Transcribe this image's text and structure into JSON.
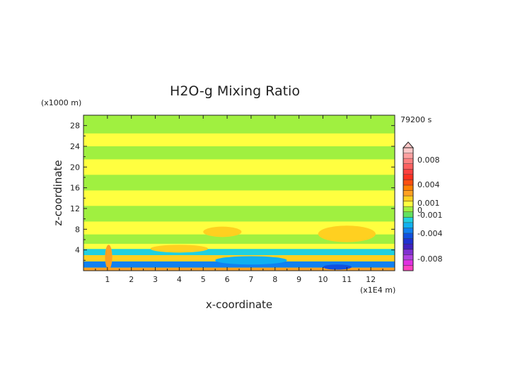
{
  "chart_data": {
    "type": "heatmap",
    "title": "H2O-g Mixing Ratio",
    "xlabel": "x-coordinate",
    "ylabel": "z-coordinate",
    "x_unit": "(x1E4 m)",
    "y_unit": "(x1000 m)",
    "time_label": "79200 s",
    "xlim": [
      0,
      13
    ],
    "ylim": [
      0,
      30
    ],
    "x_ticks": [
      "1",
      "2",
      "3",
      "4",
      "5",
      "6",
      "7",
      "8",
      "9",
      "10",
      "11",
      "12"
    ],
    "y_ticks": [
      "4",
      "8",
      "12",
      "16",
      "20",
      "24",
      "28"
    ],
    "colorbar": {
      "labels": [
        "0.008",
        "0.004",
        "0.001",
        "0",
        "-0.001",
        "-0.004",
        "-0.008"
      ],
      "levels": [
        -0.01,
        -0.009,
        -0.008,
        -0.007,
        -0.006,
        -0.005,
        -0.004,
        -0.003,
        -0.002,
        -0.001,
        -0.0005,
        0,
        0.0005,
        0.001,
        0.002,
        0.003,
        0.004,
        0.005,
        0.006,
        0.007,
        0.008,
        0.009,
        0.01
      ],
      "colors": [
        "#ff40c0",
        "#e030e0",
        "#b040e0",
        "#8030d0",
        "#4020c0",
        "#2030d0",
        "#1050e0",
        "#1080f0",
        "#10b0f0",
        "#20d0e0",
        "#60e060",
        "#a0f040",
        "#ffff40",
        "#ffd020",
        "#ffa020",
        "#ff8000",
        "#ff5010",
        "#ff3020",
        "#ff4040",
        "#ff6060",
        "#ff8080",
        "#ffa0a0",
        "#ffc8c8"
      ]
    },
    "bands": [
      {
        "z0": 0,
        "z1": 0.6,
        "value": 0.0025
      },
      {
        "z0": 0.6,
        "z1": 1.8,
        "value": -0.003
      },
      {
        "z0": 1.8,
        "z1": 3.0,
        "value": 0.0015
      },
      {
        "z0": 3.0,
        "z1": 4.2,
        "value": -0.0008
      },
      {
        "z0": 4.2,
        "z1": 5.2,
        "value": 0.0006
      },
      {
        "z0": 5.2,
        "z1": 7.0,
        "value": 0.0003
      },
      {
        "z0": 7.0,
        "z1": 9.5,
        "value": 0.0007
      },
      {
        "z0": 9.5,
        "z1": 12.5,
        "value": 0.0003
      },
      {
        "z0": 12.5,
        "z1": 15.5,
        "value": 0.0007
      },
      {
        "z0": 15.5,
        "z1": 18.5,
        "value": 0.0003
      },
      {
        "z0": 18.5,
        "z1": 21.5,
        "value": 0.0007
      },
      {
        "z0": 21.5,
        "z1": 24.0,
        "value": 0.0003
      },
      {
        "z0": 24.0,
        "z1": 26.5,
        "value": 0.0007
      },
      {
        "z0": 26.5,
        "z1": 30.0,
        "value": 0.0003
      }
    ],
    "features": [
      {
        "x0": 5.0,
        "x1": 6.6,
        "z0": 6.5,
        "z1": 8.5,
        "value": 0.0015
      },
      {
        "x0": 9.8,
        "x1": 12.2,
        "z0": 5.5,
        "z1": 8.7,
        "value": 0.0015
      },
      {
        "x0": 2.8,
        "x1": 5.2,
        "z0": 3.5,
        "z1": 5.0,
        "value": 0.0015
      },
      {
        "x0": 0.9,
        "x1": 1.2,
        "z0": 0.3,
        "z1": 5.0,
        "value": 0.002
      },
      {
        "x0": 5.5,
        "x1": 8.5,
        "z0": 1.2,
        "z1": 2.8,
        "value": -0.002
      },
      {
        "x0": 10.0,
        "x1": 11.2,
        "z0": 0.2,
        "z1": 1.2,
        "value": -0.004
      }
    ]
  }
}
